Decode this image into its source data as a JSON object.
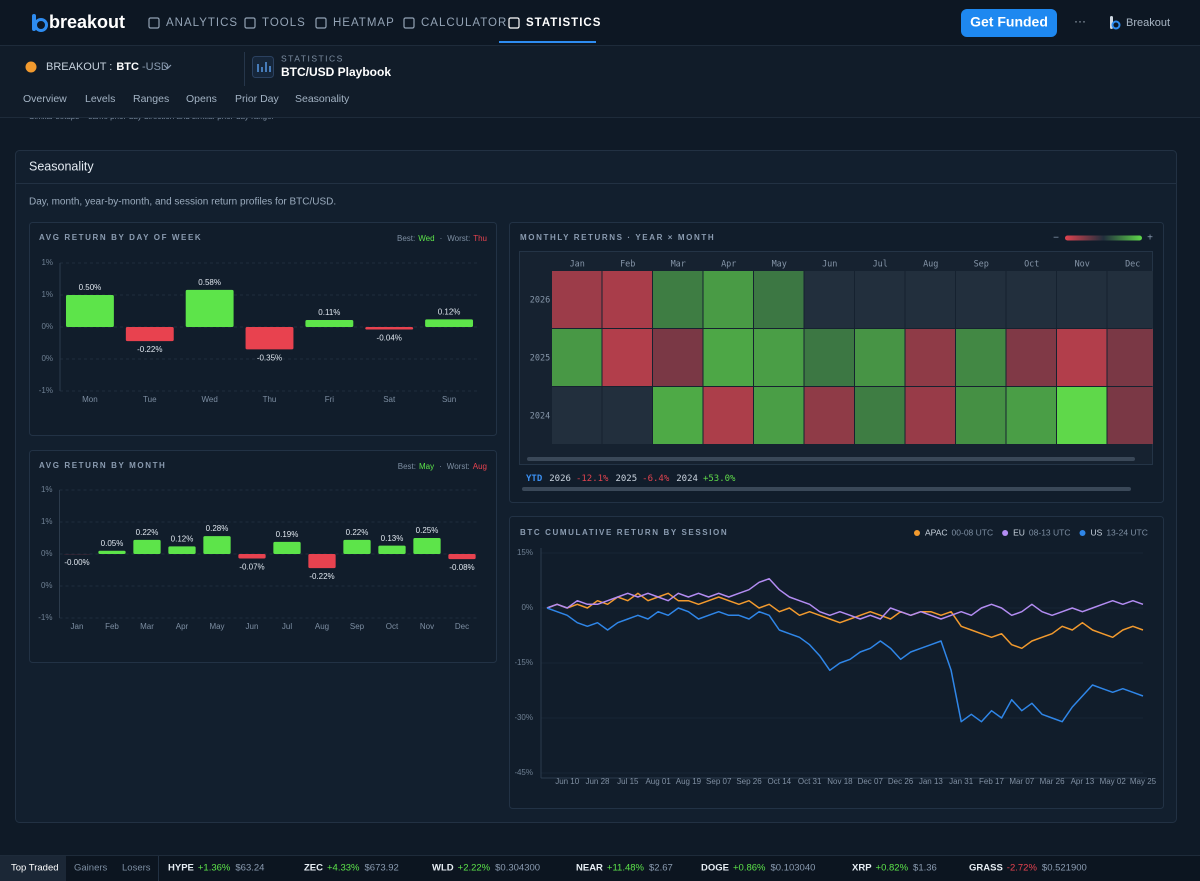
{
  "nav": {
    "brand": "breakout",
    "items": [
      "ANALYTICS",
      "TOOLS",
      "HEATMAP",
      "CALCULATOR",
      "STATISTICS"
    ],
    "active": 4,
    "cta": "Get Funded",
    "more": "···",
    "account": "Breakout"
  },
  "symbol": {
    "exchange": "BREAKOUT",
    "separator": ":",
    "base": "BTC",
    "quote": "-USD"
  },
  "playbook": {
    "kicker": "STATISTICS",
    "title": "BTC/USD Playbook"
  },
  "tabs": [
    "Overview",
    "Levels",
    "Ranges",
    "Opens",
    "Prior Day",
    "Seasonality"
  ],
  "note": "Similar setups = same prior-day direction and similar prior-day range.",
  "section": {
    "title": "Seasonality",
    "description": "Day, month, year-by-month, and session return profiles for BTC/USD."
  },
  "chart_data": [
    {
      "type": "bar",
      "title": "AVG RETURN BY DAY OF WEEK",
      "best_label": "Best:",
      "best": "Wed",
      "separator": "·",
      "worst_label": "Worst:",
      "worst": "Thu",
      "categories": [
        "Mon",
        "Tue",
        "Wed",
        "Thu",
        "Fri",
        "Sat",
        "Sun"
      ],
      "values": [
        0.5,
        -0.22,
        0.58,
        -0.35,
        0.11,
        -0.04,
        0.12
      ],
      "value_labels": [
        "0.50%",
        "-0.22%",
        "0.58%",
        "-0.35%",
        "0.11%",
        "-0.04%",
        "0.12%"
      ],
      "ylim": [
        -1,
        1
      ],
      "yticks": [
        {
          "value": 1,
          "label": "1%"
        },
        {
          "value": 0.5,
          "label": "1%"
        },
        {
          "value": 0,
          "label": "0%"
        },
        {
          "value": -0.5,
          "label": "0%"
        },
        {
          "value": -1,
          "label": "-1%"
        }
      ],
      "colors": {
        "positive": "#5de44a",
        "negative": "#e8424f"
      },
      "grid": true
    },
    {
      "type": "bar",
      "title": "AVG RETURN BY MONTH",
      "best_label": "Best:",
      "best": "May",
      "separator": "·",
      "worst_label": "Worst:",
      "worst": "Aug",
      "categories": [
        "Jan",
        "Feb",
        "Mar",
        "Apr",
        "May",
        "Jun",
        "Jul",
        "Aug",
        "Sep",
        "Oct",
        "Nov",
        "Dec"
      ],
      "values": [
        -0.001,
        0.05,
        0.22,
        0.12,
        0.28,
        -0.07,
        0.19,
        -0.22,
        0.22,
        0.13,
        0.25,
        -0.08
      ],
      "value_labels": [
        "-0.00%",
        "0.05%",
        "0.22%",
        "0.12%",
        "0.28%",
        "-0.07%",
        "0.19%",
        "-0.22%",
        "0.22%",
        "0.13%",
        "0.25%",
        "-0.08%"
      ],
      "ylim": [
        -1,
        1
      ],
      "yticks": [
        {
          "value": 1,
          "label": "1%"
        },
        {
          "value": 0.5,
          "label": "1%"
        },
        {
          "value": 0,
          "label": "0%"
        },
        {
          "value": -0.5,
          "label": "0%"
        },
        {
          "value": -1,
          "label": "-1%"
        }
      ],
      "colors": {
        "positive": "#5de44a",
        "negative": "#e8424f"
      },
      "grid": true
    },
    {
      "type": "heatmap",
      "title": "MONTHLY RETURNS · YEAR × MONTH",
      "legend_low": "−",
      "legend_high": "+",
      "x": [
        "Jan",
        "Feb",
        "Mar",
        "Apr",
        "May",
        "Jun",
        "Jul",
        "Aug",
        "Sep",
        "Oct",
        "Nov",
        "Dec"
      ],
      "y": [
        "2026",
        "2025",
        "2024"
      ],
      "values": [
        [
          -10,
          -14,
          3,
          10,
          2,
          null,
          null,
          null,
          null,
          null,
          null,
          null
        ],
        [
          9,
          -17,
          -3,
          14,
          11,
          2,
          8,
          -7,
          5,
          -4,
          -17,
          -3
        ],
        [
          null,
          null,
          15,
          -15,
          11,
          -7,
          3,
          -9,
          7,
          11,
          37,
          -3
        ]
      ],
      "colors": {
        "positive": "#5fd84a",
        "negative": "#e0434f",
        "empty": "#222f3d"
      },
      "ytd": {
        "label": "YTD",
        "years": [
          "2026",
          "2025",
          "2024"
        ],
        "values": [
          -12.1,
          -6.4,
          53.0
        ],
        "value_labels": [
          "-12.1%",
          "-6.4%",
          "+53.0%"
        ]
      }
    },
    {
      "type": "line",
      "title": "BTC CUMULATIVE RETURN BY SESSION",
      "x": [
        "Jun 01",
        "Jun 05",
        "Jun 10",
        "Jun 16",
        "Jun 22",
        "Jun 28",
        "Jul 04",
        "Jul 10",
        "Jul 15",
        "Jul 21",
        "Jul 27",
        "Aug 01",
        "Aug 07",
        "Aug 13",
        "Aug 19",
        "Aug 25",
        "Sep 01",
        "Sep 07",
        "Sep 13",
        "Sep 20",
        "Sep 26",
        "Oct 02",
        "Oct 08",
        "Oct 14",
        "Oct 20",
        "Oct 26",
        "Oct 31",
        "Nov 06",
        "Nov 12",
        "Nov 18",
        "Nov 24",
        "Dec 01",
        "Dec 07",
        "Dec 13",
        "Dec 20",
        "Dec 26",
        "Jan 01",
        "Jan 07",
        "Jan 13",
        "Jan 19",
        "Jan 25",
        "Jan 31",
        "Feb 06",
        "Feb 12",
        "Feb 17",
        "Feb 23",
        "Mar 01",
        "Mar 07",
        "Mar 13",
        "Mar 20",
        "Mar 26",
        "Apr 01",
        "Apr 07",
        "Apr 13",
        "Apr 19",
        "Apr 25",
        "May 02",
        "May 09",
        "May 17",
        "May 25"
      ],
      "xticks": [
        "Jun 10",
        "Jun 28",
        "Jul 15",
        "Aug 01",
        "Aug 19",
        "Sep 07",
        "Sep 26",
        "Oct 14",
        "Oct 31",
        "Nov 18",
        "Dec 07",
        "Dec 26",
        "Jan 13",
        "Jan 31",
        "Feb 17",
        "Mar 07",
        "Mar 26",
        "Apr 13",
        "May 02",
        "May 25"
      ],
      "ylim": [
        -45,
        15
      ],
      "yticks": [
        {
          "value": 15,
          "label": "15%"
        },
        {
          "value": 0,
          "label": "0%"
        },
        {
          "value": -15,
          "label": "-15%"
        },
        {
          "value": -30,
          "label": "-30%"
        },
        {
          "value": -45,
          "label": "-45%"
        }
      ],
      "grid": true,
      "series": [
        {
          "name": "APAC",
          "window": "00-08 UTC",
          "color": "#f29a2e",
          "values": [
            0,
            1,
            0,
            1,
            0,
            2,
            1,
            3,
            2,
            4,
            2,
            3,
            4,
            2,
            2,
            1,
            2,
            3,
            2,
            1,
            2,
            0,
            1,
            -1,
            0,
            -2,
            -1,
            -2,
            -3,
            -4,
            -3,
            -2,
            -1,
            -2,
            -3,
            -1,
            -2,
            -1,
            -1,
            -2,
            -1,
            -5,
            -6,
            -7,
            -8,
            -7,
            -10,
            -11,
            -9,
            -8,
            -7,
            -5,
            -6,
            -4,
            -6,
            -7,
            -8,
            -6,
            -5,
            -6
          ]
        },
        {
          "name": "EU",
          "window": "08-13 UTC",
          "color": "#b38cf2",
          "values": [
            0,
            1,
            0,
            2,
            1,
            1,
            2,
            3,
            4,
            3,
            4,
            3,
            2,
            4,
            3,
            4,
            3,
            4,
            3,
            4,
            5,
            7,
            8,
            5,
            3,
            2,
            1,
            -1,
            -2,
            -1,
            -2,
            -3,
            -2,
            -3,
            0,
            -1,
            -2,
            -1,
            -2,
            -3,
            -2,
            -1,
            -2,
            0,
            1,
            0,
            -2,
            -1,
            1,
            -1,
            -2,
            -1,
            0,
            -1,
            0,
            1,
            2,
            1,
            2,
            1
          ]
        },
        {
          "name": "US",
          "window": "13-24 UTC",
          "color": "#2f86e8",
          "values": [
            0,
            -1,
            -2,
            -4,
            -5,
            -4,
            -6,
            -4,
            -3,
            -2,
            -3,
            -1,
            -2,
            0,
            -1,
            -3,
            -2,
            -1,
            -2,
            -2,
            -3,
            -1,
            -2,
            -6,
            -7,
            -8,
            -10,
            -13,
            -17,
            -15,
            -14,
            -12,
            -11,
            -9,
            -11,
            -14,
            -12,
            -11,
            -10,
            -9,
            -17,
            -31,
            -29,
            -31,
            -28,
            -30,
            -25,
            -28,
            -26,
            -29,
            -30,
            -31,
            -27,
            -24,
            -21,
            -22,
            -23,
            -22,
            -23,
            -24
          ]
        }
      ]
    }
  ],
  "ticker": {
    "tabs": [
      "Top Traded",
      "Gainers",
      "Losers"
    ],
    "active": 0,
    "items": [
      {
        "symbol": "HYPE",
        "change": "+1.36%",
        "price": "$63.24"
      },
      {
        "symbol": "ZEC",
        "change": "+4.33%",
        "price": "$673.92"
      },
      {
        "symbol": "WLD",
        "change": "+2.22%",
        "price": "$0.304300"
      },
      {
        "symbol": "NEAR",
        "change": "+11.48%",
        "price": "$2.67"
      },
      {
        "symbol": "DOGE",
        "change": "+0.86%",
        "price": "$0.103040"
      },
      {
        "symbol": "XRP",
        "change": "+0.82%",
        "price": "$1.36"
      },
      {
        "symbol": "GRASS",
        "change": "-2.72%",
        "price": "$0.521900"
      }
    ]
  }
}
